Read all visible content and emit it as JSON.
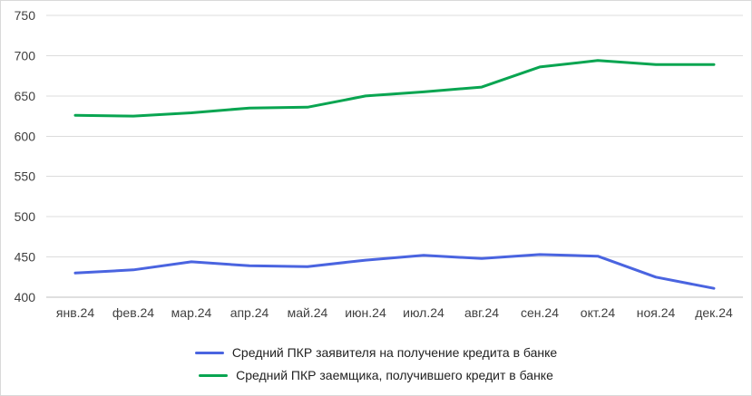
{
  "chart_data": {
    "type": "line",
    "title": "",
    "categories": [
      "янв.24",
      "фев.24",
      "мар.24",
      "апр.24",
      "май.24",
      "июн.24",
      "июл.24",
      "авг.24",
      "сен.24",
      "окт.24",
      "ноя.24",
      "дек.24"
    ],
    "series": [
      {
        "name": "Средний ПКР заявителя на получение кредита в банке",
        "color": "#4a64e0",
        "values": [
          430,
          434,
          444,
          439,
          438,
          446,
          452,
          448,
          453,
          451,
          425,
          411
        ]
      },
      {
        "name": "Средний ПКР заемщика, получившего кредит в банке",
        "color": "#09a551",
        "values": [
          626,
          625,
          629,
          635,
          636,
          650,
          655,
          661,
          686,
          694,
          689,
          689
        ]
      }
    ],
    "xlabel": "",
    "ylabel": "",
    "ylim": [
      400,
      750
    ],
    "yticks": [
      400,
      450,
      500,
      550,
      600,
      650,
      700,
      750
    ],
    "grid": true,
    "legend_position": "bottom"
  },
  "colors": {
    "grid": "#dcdcdc",
    "axis_line": "#bfbfbf",
    "tick_text": "#404040",
    "legend_text": "#222222",
    "background": "#ffffff",
    "border": "#d9d9d9"
  }
}
